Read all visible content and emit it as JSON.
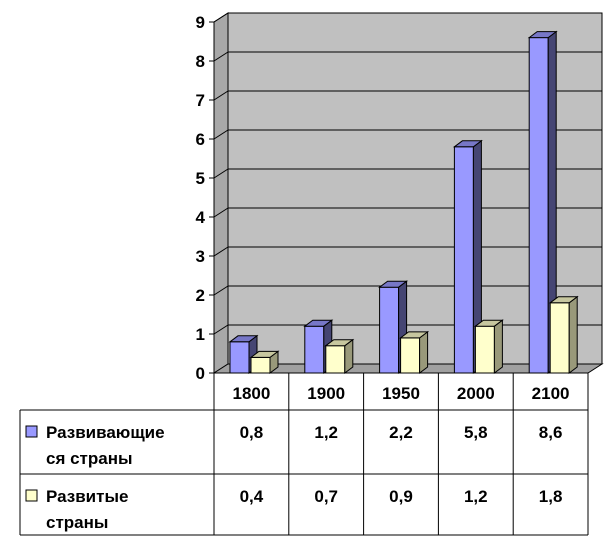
{
  "chart_data": {
    "type": "bar",
    "categories": [
      "1800",
      "1900",
      "1950",
      "2000",
      "2100"
    ],
    "series": [
      {
        "name": "Развивающиеся страны",
        "name_lines": [
          "Развивающие",
          "ся страны"
        ],
        "values": [
          0.8,
          1.2,
          2.2,
          5.8,
          8.6
        ],
        "labels": [
          "0,8",
          "1,2",
          "2,2",
          "5,8",
          "8,6"
        ],
        "color": "#9999ff"
      },
      {
        "name": "Развитые страны",
        "name_lines": [
          "Развитые",
          "страны"
        ],
        "values": [
          0.4,
          0.7,
          0.9,
          1.2,
          1.8
        ],
        "labels": [
          "0,4",
          "0,7",
          "0,9",
          "1,2",
          "1,8"
        ],
        "color": "#ffffcc"
      }
    ],
    "y_ticks": [
      "0",
      "1",
      "2",
      "3",
      "4",
      "5",
      "6",
      "7",
      "8",
      "9"
    ],
    "ylim": [
      0,
      9
    ],
    "grid": true,
    "wall_color": "#c0c0c0",
    "data_table": true
  }
}
